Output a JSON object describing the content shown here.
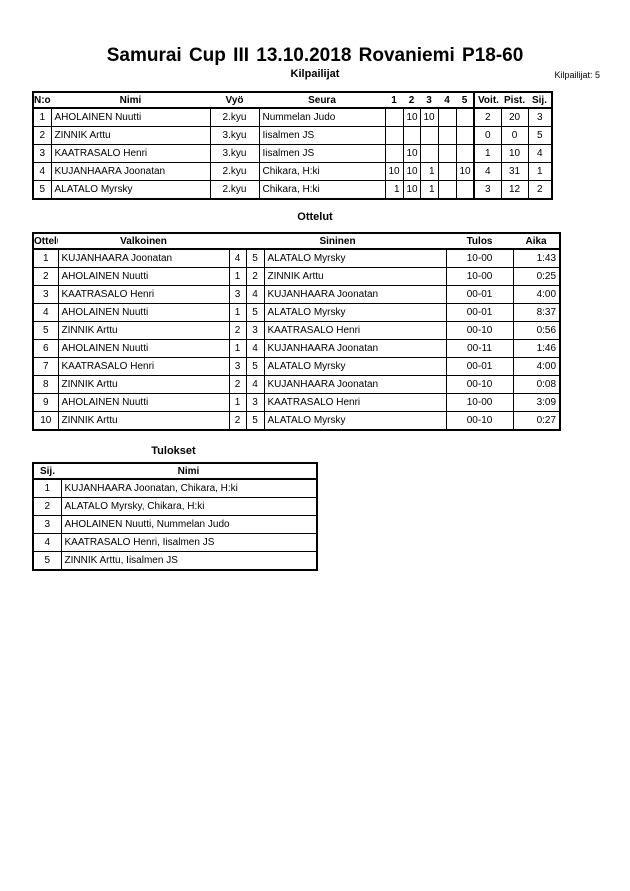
{
  "title": "Samurai Cup III  13.10.2018  Rovaniemi   P18-60",
  "competitors": {
    "heading": "Kilpailijat",
    "count_label": "Kilpailijat: 5",
    "columns": [
      "N:o",
      "Nimi",
      "Vyö",
      "Seura",
      "1",
      "2",
      "3",
      "4",
      "5",
      "Voit.",
      "Pist.",
      "Sij."
    ],
    "rows": [
      {
        "no": "1",
        "name": "AHOLAINEN Nuutti",
        "belt": "2.kyu",
        "club": "Nummelan Judo",
        "scores": [
          "",
          "10",
          "10",
          "",
          ""
        ],
        "wins": "2",
        "points": "20",
        "place": "3"
      },
      {
        "no": "2",
        "name": "ZINNIK Arttu",
        "belt": "3.kyu",
        "club": "Iisalmen JS",
        "scores": [
          "",
          "",
          "",
          "",
          ""
        ],
        "wins": "0",
        "points": "0",
        "place": "5"
      },
      {
        "no": "3",
        "name": "KAATRASALO Henri",
        "belt": "3.kyu",
        "club": "Iisalmen JS",
        "scores": [
          "",
          "10",
          "",
          "",
          ""
        ],
        "wins": "1",
        "points": "10",
        "place": "4"
      },
      {
        "no": "4",
        "name": "KUJANHAARA Joonatan",
        "belt": "2.kyu",
        "club": "Chikara, H:ki",
        "scores": [
          "10",
          "10",
          "1",
          "",
          "10"
        ],
        "wins": "4",
        "points": "31",
        "place": "1"
      },
      {
        "no": "5",
        "name": "ALATALO Myrsky",
        "belt": "2.kyu",
        "club": "Chikara, H:ki",
        "scores": [
          "1",
          "10",
          "1",
          "",
          ""
        ],
        "wins": "3",
        "points": "12",
        "place": "2"
      }
    ]
  },
  "matches": {
    "heading": "Ottelut",
    "columns": [
      "Ottelu",
      "Valkoinen",
      "Sininen",
      "Tulos",
      "Aika"
    ],
    "rows": [
      {
        "no": "1",
        "white": "KUJANHAARA Joonatan",
        "wn": "4",
        "bn": "5",
        "blue": "ALATALO Myrsky",
        "result": "10-00",
        "time": "1:43"
      },
      {
        "no": "2",
        "white": "AHOLAINEN Nuutti",
        "wn": "1",
        "bn": "2",
        "blue": "ZINNIK Arttu",
        "result": "10-00",
        "time": "0:25"
      },
      {
        "no": "3",
        "white": "KAATRASALO Henri",
        "wn": "3",
        "bn": "4",
        "blue": "KUJANHAARA Joonatan",
        "result": "00-01",
        "time": "4:00"
      },
      {
        "no": "4",
        "white": "AHOLAINEN Nuutti",
        "wn": "1",
        "bn": "5",
        "blue": "ALATALO Myrsky",
        "result": "00-01",
        "time": "8:37"
      },
      {
        "no": "5",
        "white": "ZINNIK Arttu",
        "wn": "2",
        "bn": "3",
        "blue": "KAATRASALO Henri",
        "result": "00-10",
        "time": "0:56"
      },
      {
        "no": "6",
        "white": "AHOLAINEN Nuutti",
        "wn": "1",
        "bn": "4",
        "blue": "KUJANHAARA Joonatan",
        "result": "00-11",
        "time": "1:46"
      },
      {
        "no": "7",
        "white": "KAATRASALO Henri",
        "wn": "3",
        "bn": "5",
        "blue": "ALATALO Myrsky",
        "result": "00-01",
        "time": "4:00"
      },
      {
        "no": "8",
        "white": "ZINNIK Arttu",
        "wn": "2",
        "bn": "4",
        "blue": "KUJANHAARA Joonatan",
        "result": "00-10",
        "time": "0:08"
      },
      {
        "no": "9",
        "white": "AHOLAINEN Nuutti",
        "wn": "1",
        "bn": "3",
        "blue": "KAATRASALO Henri",
        "result": "10-00",
        "time": "3:09"
      },
      {
        "no": "10",
        "white": "ZINNIK Arttu",
        "wn": "2",
        "bn": "5",
        "blue": "ALATALO Myrsky",
        "result": "00-10",
        "time": "0:27"
      }
    ]
  },
  "results": {
    "heading": "Tulokset",
    "columns": [
      "Sij.",
      "Nimi"
    ],
    "rows": [
      {
        "place": "1",
        "name": "KUJANHAARA Joonatan, Chikara, H:ki"
      },
      {
        "place": "2",
        "name": "ALATALO Myrsky, Chikara, H:ki"
      },
      {
        "place": "3",
        "name": "AHOLAINEN Nuutti, Nummelan Judo"
      },
      {
        "place": "4",
        "name": "KAATRASALO Henri, Iisalmen JS"
      },
      {
        "place": "5",
        "name": "ZINNIK Arttu, Iisalmen JS"
      }
    ]
  }
}
